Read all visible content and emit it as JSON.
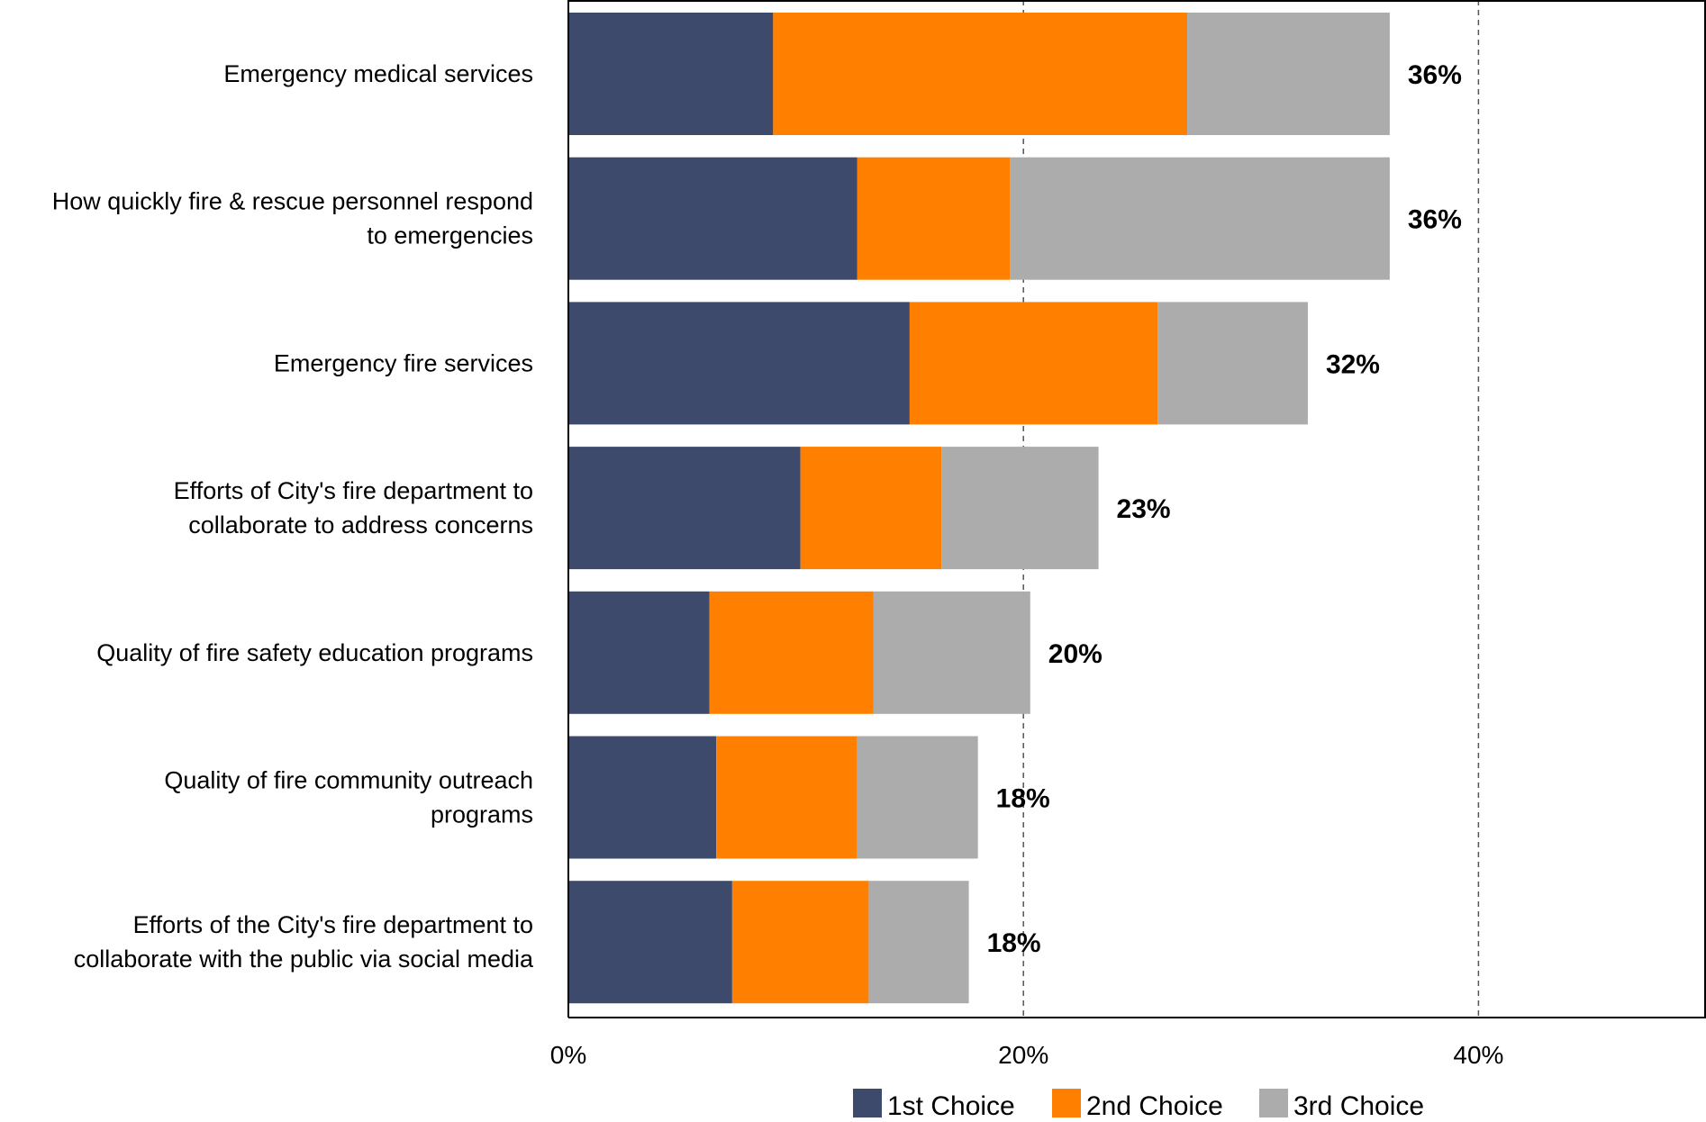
{
  "chart_data": {
    "type": "bar",
    "orientation": "horizontal",
    "stacked": true,
    "categories": [
      "Emergency medical services",
      "How quickly fire & rescue personnel respond to emergencies",
      "Emergency fire services",
      "Efforts of City's fire department to collaborate to address concerns",
      "Quality of fire safety education programs",
      "Quality of fire community outreach programs",
      "Efforts of the City's fire department to collaborate with the public via social media"
    ],
    "category_lines": [
      [
        "Emergency medical services"
      ],
      [
        "How quickly fire & rescue personnel respond",
        "to emergencies"
      ],
      [
        "Emergency fire services"
      ],
      [
        "Efforts of City's fire department to",
        "collaborate to address concerns"
      ],
      [
        "Quality of fire safety education programs"
      ],
      [
        "Quality of fire community outreach",
        "programs"
      ],
      [
        "Efforts of the City's fire department to",
        "collaborate with the public via social media"
      ]
    ],
    "series": [
      {
        "name": "1st Choice",
        "color": "#3e4a6b",
        "values": [
          9.0,
          12.7,
          15.0,
          10.2,
          6.2,
          6.5,
          7.2
        ]
      },
      {
        "name": "2nd Choice",
        "color": "#ff8000",
        "values": [
          18.2,
          6.7,
          10.9,
          6.2,
          7.2,
          6.2,
          6.0
        ]
      },
      {
        "name": "3rd Choice",
        "color": "#acacac",
        "values": [
          8.9,
          16.7,
          6.6,
          6.9,
          6.9,
          5.3,
          4.4
        ]
      }
    ],
    "totals": [
      "36%",
      "36%",
      "32%",
      "23%",
      "20%",
      "18%",
      "18%"
    ],
    "xlim": [
      0,
      50
    ],
    "xticks": [
      0,
      20,
      40
    ],
    "xtick_labels": [
      "0%",
      "20%",
      "40%"
    ],
    "gridlines": [
      20,
      40
    ],
    "grid_style": "dashed",
    "legend_position": "bottom",
    "title": "",
    "xlabel": "",
    "ylabel": ""
  }
}
